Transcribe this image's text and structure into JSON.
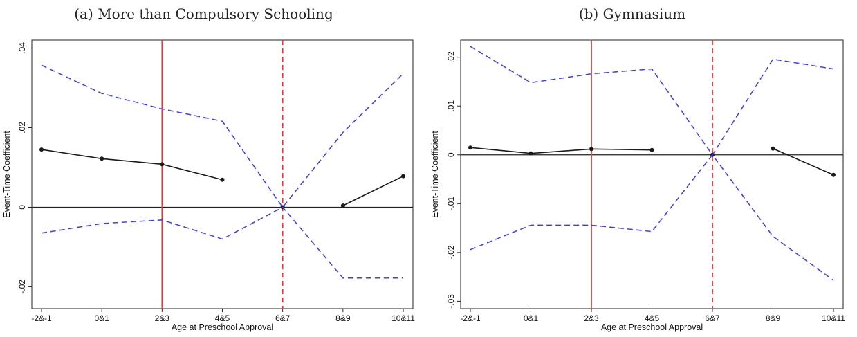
{
  "chart_data": [
    {
      "type": "line",
      "title": "(a) More than Compulsory Schooling",
      "xlabel": "Age at Preschool Approval",
      "ylabel": "Event-Time Coefficient",
      "categories": [
        "-2&-1",
        "0&1",
        "2&3",
        "4&5",
        "6&7",
        "8&9",
        "10&11"
      ],
      "y_ticks": [
        -0.02,
        0,
        0.02,
        0.04
      ],
      "y_tick_labels": [
        "-.02",
        "0",
        ".02",
        ".04"
      ],
      "ylim": [
        -0.0255,
        0.042
      ],
      "series": [
        {
          "role": "estimate",
          "segments": [
            {
              "x_index": [
                0,
                1,
                2,
                3
              ],
              "values": [
                0.0145,
                0.0122,
                0.0108,
                0.0069
              ]
            },
            {
              "x_index": [
                4
              ],
              "values": [
                0.0
              ]
            },
            {
              "x_index": [
                5,
                6
              ],
              "values": [
                0.0004,
                0.0078
              ]
            }
          ]
        },
        {
          "role": "upper-ci",
          "values": [
            0.0357,
            0.0286,
            0.0247,
            0.0216,
            0.0,
            0.0188,
            0.0336
          ]
        },
        {
          "role": "lower-ci",
          "values": [
            -0.0065,
            -0.0041,
            -0.0032,
            -0.008,
            0.0,
            -0.0178,
            -0.0178
          ]
        }
      ],
      "reference_lines": {
        "horizontal_zero": true,
        "solid_vertical_at": "2&3",
        "dashed_vertical_at": "6&7"
      },
      "colors": {
        "estimate": "#1a1a1a",
        "ci": "#3b3bff",
        "vline": "#e8393a"
      }
    },
    {
      "type": "line",
      "title": "(b) Gymnasium",
      "xlabel": "Age at Preschool Approval",
      "ylabel": "Event-Time Coefficient",
      "categories": [
        "-2&-1",
        "0&1",
        "2&3",
        "4&5",
        "6&7",
        "8&9",
        "10&11"
      ],
      "y_ticks": [
        -0.03,
        -0.02,
        -0.01,
        0,
        0.01,
        0.02
      ],
      "y_tick_labels": [
        "-.03",
        "-.02",
        "-.01",
        "0",
        ".01",
        ".02"
      ],
      "ylim": [
        -0.0315,
        0.0235
      ],
      "series": [
        {
          "role": "estimate",
          "segments": [
            {
              "x_index": [
                0,
                1,
                2,
                3
              ],
              "values": [
                0.0015,
                0.0003,
                0.0012,
                0.001
              ]
            },
            {
              "x_index": [
                4
              ],
              "values": [
                0.0
              ]
            },
            {
              "x_index": [
                5,
                6
              ],
              "values": [
                0.0013,
                -0.0041
              ]
            }
          ]
        },
        {
          "role": "upper-ci",
          "values": [
            0.0222,
            0.0148,
            0.0166,
            0.0176,
            0.0,
            0.0196,
            0.0176
          ]
        },
        {
          "role": "lower-ci",
          "values": [
            -0.0194,
            -0.0144,
            -0.0144,
            -0.0157,
            0.0,
            -0.0167,
            -0.0257
          ]
        }
      ],
      "reference_lines": {
        "horizontal_zero": true,
        "solid_vertical_at": "2&3",
        "dashed_vertical_at": "6&7"
      },
      "colors": {
        "estimate": "#1a1a1a",
        "ci": "#3b3bff",
        "vline": "#e8393a"
      }
    }
  ]
}
